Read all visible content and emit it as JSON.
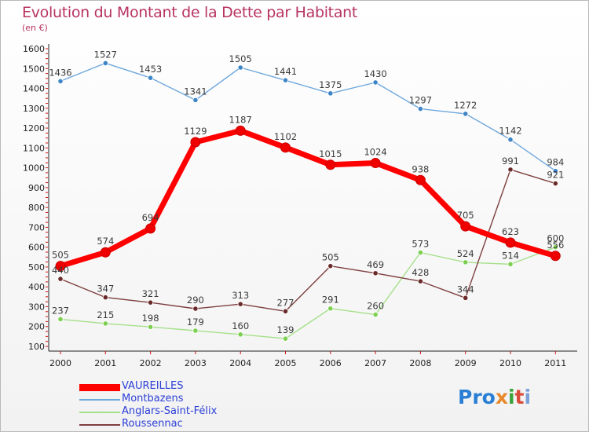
{
  "title": "Evolution du Montant de la Dette par Habitant",
  "unit": "(en €)",
  "logo": {
    "text": "Proxiti",
    "letters": [
      "Pro",
      "x",
      "i",
      "t",
      "i"
    ]
  },
  "chart_data": {
    "type": "line",
    "x": [
      "2000",
      "2001",
      "2002",
      "2003",
      "2004",
      "2005",
      "2006",
      "2007",
      "2008",
      "2009",
      "2010",
      "2011"
    ],
    "ylim": [
      100,
      1600
    ],
    "yticks": [
      100,
      200,
      300,
      400,
      500,
      600,
      700,
      800,
      900,
      1000,
      1100,
      1200,
      1300,
      1400,
      1500,
      1600
    ],
    "grid": false,
    "legend_position": "bottom-left",
    "series": [
      {
        "name": "VAUREILLES",
        "color": "#ff0000",
        "point_color": "#ee0000",
        "values": [
          505,
          574,
          694,
          1129,
          1187,
          1102,
          1015,
          1024,
          938,
          705,
          623,
          556
        ]
      },
      {
        "name": "Montbazens",
        "color": "#6fa8dc",
        "point_color": "#3d85c6",
        "values": [
          1436,
          1527,
          1453,
          1341,
          1505,
          1441,
          1375,
          1430,
          1297,
          1272,
          1142,
          984
        ]
      },
      {
        "name": "Anglars-Saint-Félix",
        "color": "#a6e08a",
        "point_color": "#7ccf4f",
        "values": [
          237,
          215,
          198,
          179,
          160,
          139,
          291,
          260,
          573,
          524,
          514,
          600
        ]
      },
      {
        "name": "Roussennac",
        "color": "#7f3f3f",
        "point_color": "#6b2a2a",
        "values": [
          440,
          347,
          321,
          290,
          313,
          277,
          505,
          469,
          428,
          344,
          991,
          921
        ]
      }
    ]
  }
}
